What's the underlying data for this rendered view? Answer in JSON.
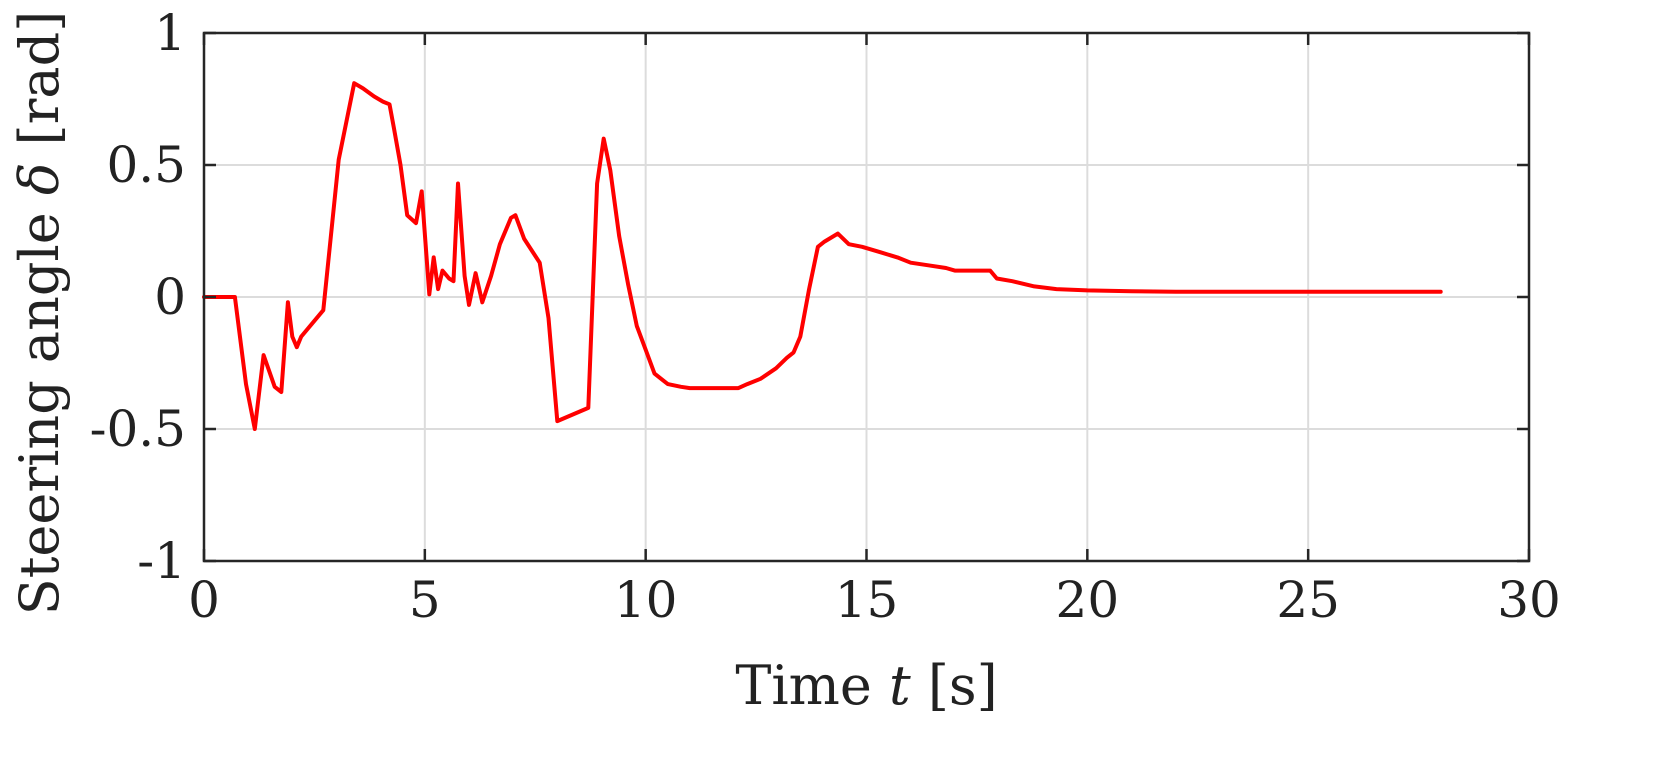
{
  "chart_data": {
    "type": "line",
    "title": "",
    "xlabel": {
      "prefix": "Time ",
      "var": "t",
      "suffix": " [s]"
    },
    "ylabel": {
      "prefix": "Steering angle ",
      "var": "δ",
      "suffix": " [rad]"
    },
    "xlim": [
      0,
      30
    ],
    "ylim": [
      -1,
      1
    ],
    "xticks": [
      0,
      5,
      10,
      15,
      20,
      25,
      30
    ],
    "xtick_labels": [
      "0",
      "5",
      "10",
      "15",
      "20",
      "25",
      "30"
    ],
    "yticks": [
      1,
      0.5,
      0,
      -0.5,
      -1
    ],
    "ytick_labels": [
      "1",
      "0.5",
      "0",
      "-0.5",
      "-1"
    ],
    "grid": true,
    "legend": false,
    "series": [
      {
        "color": "#ff0000",
        "x": [
          0,
          0.7,
          0.95,
          1.15,
          1.35,
          1.6,
          1.75,
          1.9,
          2.0,
          2.1,
          2.2,
          2.7,
          3.05,
          3.4,
          3.6,
          3.85,
          4.05,
          4.2,
          4.3,
          4.45,
          4.6,
          4.8,
          4.93,
          5.1,
          5.2,
          5.3,
          5.4,
          5.55,
          5.65,
          5.75,
          5.9,
          6.0,
          6.15,
          6.3,
          6.5,
          6.7,
          6.95,
          7.05,
          7.25,
          7.6,
          7.8,
          8.0,
          8.7,
          8.9,
          9.05,
          9.2,
          9.4,
          9.6,
          9.8,
          10.0,
          10.2,
          10.5,
          10.8,
          11.0,
          11.4,
          12.1,
          12.3,
          12.6,
          12.95,
          13.2,
          13.35,
          13.5,
          13.7,
          13.9,
          14.05,
          14.35,
          14.6,
          14.9,
          15.3,
          15.7,
          16.0,
          16.4,
          16.8,
          17.0,
          17.2,
          17.5,
          17.8,
          17.95,
          18.3,
          18.8,
          19.3,
          20.0,
          21.0,
          22.0,
          23.0,
          24.0,
          25.0,
          26.0,
          27.0,
          28.0
        ],
        "y": [
          0,
          0,
          -0.33,
          -0.5,
          -0.22,
          -0.34,
          -0.36,
          -0.02,
          -0.15,
          -0.19,
          -0.15,
          -0.05,
          0.52,
          0.81,
          0.79,
          0.76,
          0.74,
          0.73,
          0.64,
          0.5,
          0.31,
          0.28,
          0.4,
          0.01,
          0.15,
          0.03,
          0.1,
          0.07,
          0.06,
          0.43,
          0.08,
          -0.03,
          0.09,
          -0.02,
          0.08,
          0.2,
          0.3,
          0.31,
          0.22,
          0.13,
          -0.08,
          -0.47,
          -0.42,
          0.43,
          0.6,
          0.48,
          0.23,
          0.05,
          -0.11,
          -0.2,
          -0.29,
          -0.33,
          -0.34,
          -0.345,
          -0.345,
          -0.345,
          -0.33,
          -0.31,
          -0.27,
          -0.23,
          -0.21,
          -0.15,
          0.03,
          0.19,
          0.21,
          0.24,
          0.2,
          0.19,
          0.17,
          0.15,
          0.13,
          0.12,
          0.11,
          0.1,
          0.1,
          0.1,
          0.1,
          0.07,
          0.06,
          0.04,
          0.03,
          0.025,
          0.022,
          0.02,
          0.02,
          0.02,
          0.02,
          0.02,
          0.02,
          0.02
        ]
      }
    ]
  }
}
